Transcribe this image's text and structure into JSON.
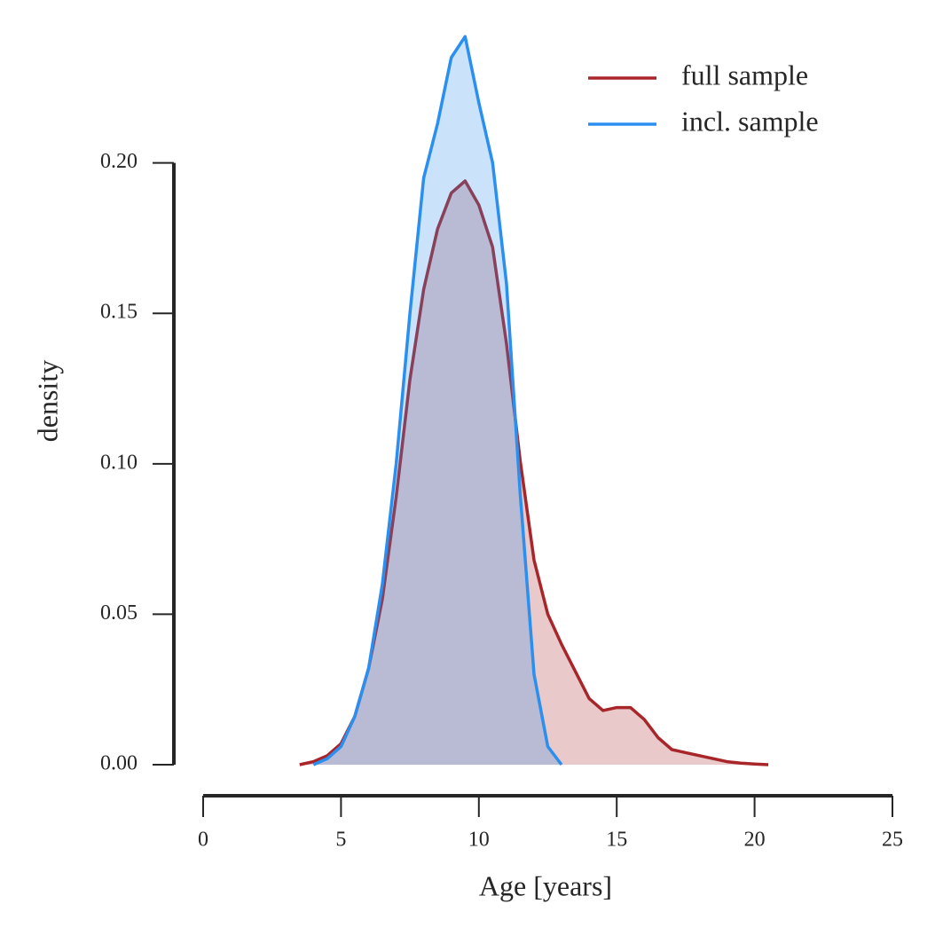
{
  "chart_data": {
    "type": "line",
    "xlabel": "Age [years]",
    "ylabel": "density",
    "x": [
      3.5,
      4,
      4.5,
      5,
      5.5,
      6,
      6.5,
      7,
      7.5,
      8,
      8.5,
      9,
      9.5,
      10,
      10.5,
      11,
      11.5,
      12,
      12.5,
      13,
      13.5,
      14,
      14.5,
      15,
      15.5,
      16,
      16.5,
      17,
      17.5,
      18,
      18.5,
      19,
      19.5,
      20,
      20.5
    ],
    "series": [
      {
        "name": "full sample",
        "color": "#a8262a",
        "fill": true,
        "values": [
          0,
          0.001,
          0.003,
          0.007,
          0.016,
          0.032,
          0.055,
          0.089,
          0.128,
          0.158,
          0.178,
          0.19,
          0.194,
          0.186,
          0.172,
          0.14,
          0.101,
          0.068,
          0.05,
          0.04,
          0.031,
          0.022,
          0.018,
          0.019,
          0.019,
          0.015,
          0.009,
          0.005,
          0.004,
          0.003,
          0.002,
          0.001,
          0.0005,
          0.0002,
          0
        ]
      },
      {
        "name": "incl. sample",
        "color": "#2b8ff0",
        "fill": true,
        "values": [
          null,
          0,
          0.002,
          0.006,
          0.016,
          0.032,
          0.06,
          0.1,
          0.15,
          0.195,
          0.213,
          0.235,
          0.242,
          0.22,
          0.2,
          0.16,
          0.09,
          0.03,
          0.006,
          0,
          null,
          null,
          null,
          null,
          null,
          null,
          null,
          null,
          null,
          null,
          null,
          null,
          null,
          null,
          null
        ]
      }
    ],
    "xlim": [
      0,
      25
    ],
    "xticks": [
      0,
      5,
      10,
      15,
      20,
      25
    ],
    "ylim": [
      0,
      0.245
    ],
    "yticks": [
      {
        "value": 0,
        "label": "0.00"
      },
      {
        "value": 0.05,
        "label": "0.05"
      },
      {
        "value": 0.1,
        "label": "0.10"
      },
      {
        "value": 0.15,
        "label": "0.15"
      },
      {
        "value": 0.2,
        "label": "0.20"
      }
    ],
    "legend": "upper right"
  }
}
